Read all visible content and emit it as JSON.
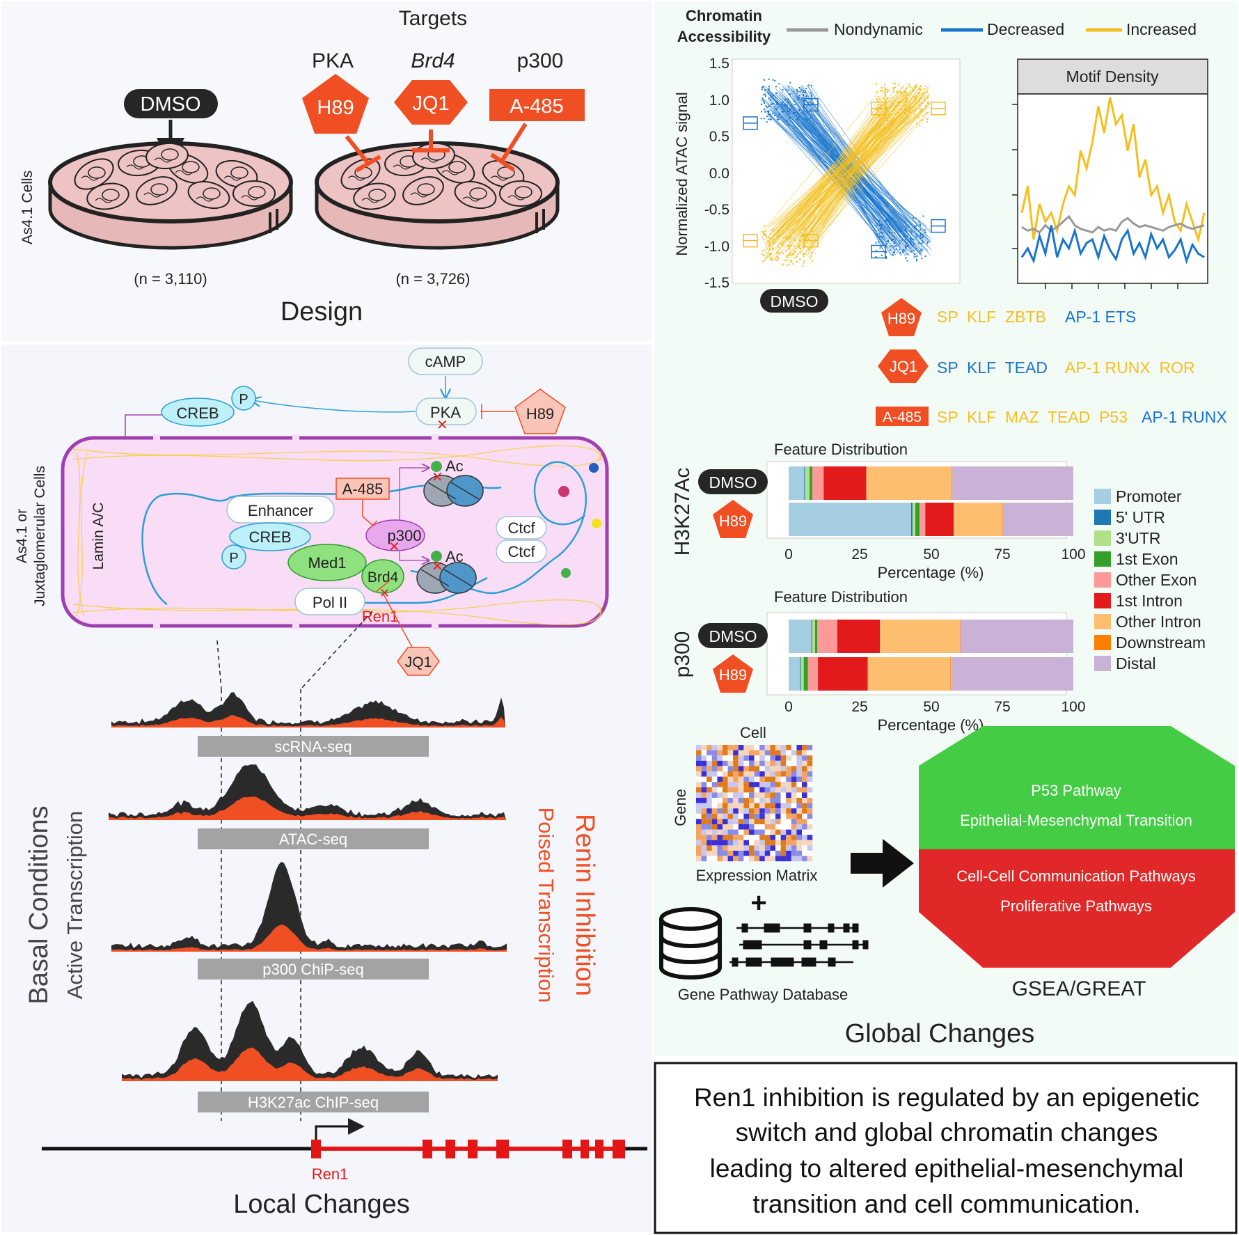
{
  "design": {
    "targets_title": "Targets",
    "dish_side_label": "As4.1 Cells",
    "control": {
      "label": "DMSO",
      "n": "(n = 3,110)"
    },
    "treated_n": "(n = 3,726)",
    "targets": [
      {
        "target": "PKA",
        "inhibitor": "H89"
      },
      {
        "target": "Brd4",
        "inhibitor": "JQ1"
      },
      {
        "target": "p300",
        "inhibitor": "A-485"
      }
    ],
    "title": "Design"
  },
  "pathway": {
    "camp": "cAMP",
    "pka": "PKA",
    "creb_top": "CREB",
    "p_top": "P",
    "h89": "H89",
    "a485": "A-485",
    "enhancer": "Enhancer",
    "creb": "CREB",
    "p": "P",
    "p300": "p300",
    "med1": "Med1",
    "brd4": "Brd4",
    "pol2": "Pol II",
    "ren1": "Ren1",
    "jq1": "JQ1",
    "ac1": "Ac",
    "ac2": "Ac",
    "ctcf1": "Ctcf",
    "ctcf2": "Ctcf",
    "lamin": "Lamin A/C",
    "cell_side_label_1": "As4.1 or",
    "cell_side_label_2": "Juxtaglomerular Cells"
  },
  "tracks": {
    "labels": [
      "scRNA-seq",
      "ATAC-seq",
      "p300 ChiP-seq",
      "H3K27ac ChIP-seq"
    ],
    "basal": "Basal Conditions",
    "active": "Active Transcription",
    "inhibition": "Renin Inhibition",
    "poised": "Poised Transcription",
    "gene": "Ren1",
    "title": "Local Changes"
  },
  "atac": {
    "title_line1": "Chromatin",
    "title_line2": "Accessibility",
    "legend": [
      {
        "name": "Nondynamic",
        "color": "#999999"
      },
      {
        "name": "Decreased",
        "color": "#1874cd"
      },
      {
        "name": "Increased",
        "color": "#f5bf1f"
      }
    ],
    "ylabel": "Normalized ATAC signal",
    "yticks": [
      "1.5",
      "1.0",
      "0.5",
      "0.0",
      "-0.5",
      "-1.0",
      "-1.5"
    ],
    "dmso": "DMSO",
    "motif_title": "Motif Density"
  },
  "motifs": [
    {
      "drug": "H89",
      "groups": [
        {
          "text": "SP  KLF  ZBTB",
          "color": "#f5bf1f"
        },
        {
          "text": "AP-1 ETS",
          "color": "#1874cd"
        }
      ]
    },
    {
      "drug": "JQ1",
      "groups": [
        {
          "text": "SP  KLF  TEAD",
          "color": "#1874cd"
        },
        {
          "text": "AP-1 RUNX  ROR",
          "color": "#f5bf1f"
        }
      ]
    },
    {
      "drug": "A-485",
      "groups": [
        {
          "text": "SP  KLF  MAZ  TEAD  P53",
          "color": "#f5bf1f"
        },
        {
          "text": "AP-1 RUNX",
          "color": "#1874cd"
        }
      ]
    }
  ],
  "feature": {
    "title": "Feature Distribution",
    "xlabel": "Percentage (%)",
    "xticks": [
      "0",
      "25",
      "50",
      "75",
      "100"
    ],
    "categories": [
      {
        "name": "Promoter",
        "color": "#a6cee3"
      },
      {
        "name": "5' UTR",
        "color": "#1f78b4"
      },
      {
        "name": "3'UTR",
        "color": "#b2df8a"
      },
      {
        "name": "1st Exon",
        "color": "#33a02c"
      },
      {
        "name": "Other Exon",
        "color": "#fb9a99"
      },
      {
        "name": "1st Intron",
        "color": "#e31a1c"
      },
      {
        "name": "Other Intron",
        "color": "#fdbf6f"
      },
      {
        "name": "Downstream",
        "color": "#ff7f00"
      },
      {
        "name": "Distal",
        "color": "#cab2d6"
      }
    ],
    "panels": [
      {
        "mark": "H3K27Ac",
        "rows": [
          {
            "label": "DMSO",
            "values": [
              5.5,
              0.3,
              1.5,
              1.0,
              4.0,
              15.0,
              30.0,
              0.2,
              42.5
            ]
          },
          {
            "label": "H89",
            "values": [
              43.0,
              0.5,
              1.0,
              1.5,
              2.0,
              10.0,
              17.0,
              0.2,
              24.8
            ]
          }
        ]
      },
      {
        "mark": "p300",
        "rows": [
          {
            "label": "DMSO",
            "values": [
              8.0,
              0.3,
              1.0,
              0.8,
              7.0,
              15.0,
              28.0,
              0.2,
              39.7
            ]
          },
          {
            "label": "H89",
            "values": [
              4.0,
              0.3,
              1.0,
              1.5,
              3.5,
              17.5,
              29.0,
              0.2,
              43.0
            ]
          }
        ]
      }
    ]
  },
  "global": {
    "heatmap_top": "Cell",
    "heatmap_side": "Gene",
    "matrix": "Expression Matrix",
    "db": "Gene Pathway Database",
    "green_1": "P53 Pathway",
    "green_2": "Epithelial-Mesenchymal Transition",
    "red_1": "Cell-Cell Communication Pathways",
    "red_2": "Proliferative Pathways",
    "gsea": "GSEA/GREAT",
    "title": "Global Changes"
  },
  "summary": {
    "l1": "Ren1 inhibition is regulated by an epigenetic",
    "l2": "switch and global chromatin changes",
    "l3": "leading to altered epithelial-mesenchymal",
    "l4": "transition and cell communication."
  },
  "colors": {
    "inhibitor": "#f04e23",
    "track_dark": "#2a2a2a",
    "track_orange": "#f04e23",
    "membrane": "#a040b0"
  }
}
